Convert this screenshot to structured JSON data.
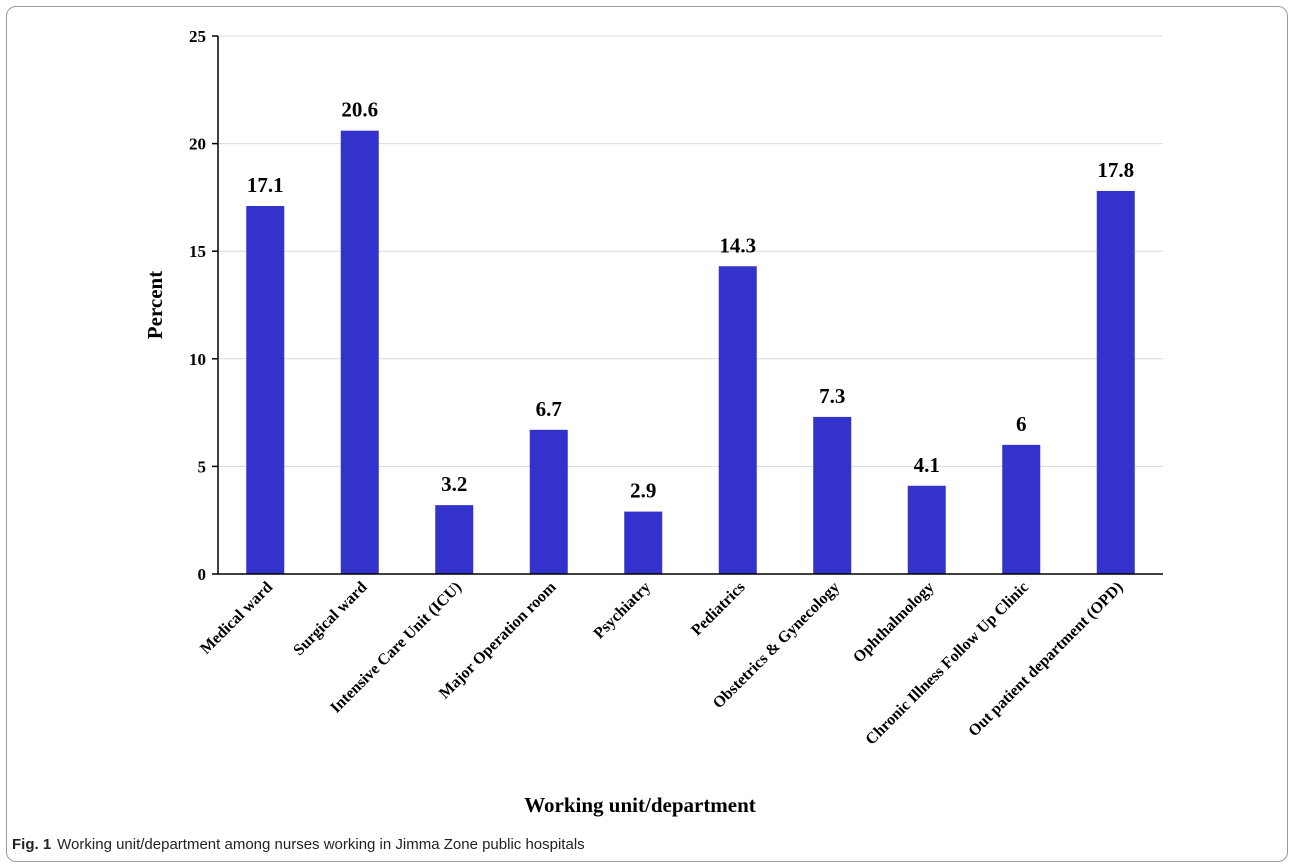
{
  "chart_data": {
    "type": "bar",
    "categories": [
      "Medical ward",
      "Surgical ward",
      "Intensive Care Unit (ICU)",
      "Major Operation room",
      "Psychiatry",
      "Pediatrics",
      "Obstetrics & Gynecology",
      "Ophthalmology",
      "Chronic Illness Follow Up Clinic",
      "Out patient department (OPD)"
    ],
    "values": [
      17.1,
      20.6,
      3.2,
      6.7,
      2.9,
      14.3,
      7.3,
      4.1,
      6,
      17.8
    ],
    "data_labels": [
      "17.1",
      "20.6",
      "3.2",
      "6.7",
      "2.9",
      "14.3",
      "7.3",
      "4.1",
      "6",
      "17.8"
    ],
    "xlabel": "Working unit/department",
    "ylabel": "Percent",
    "ylim": [
      0,
      25
    ],
    "yticks": [
      0,
      5,
      10,
      15,
      20,
      25
    ],
    "grid": true,
    "bar_color": "#3333CC"
  },
  "caption": {
    "label": "Fig. 1",
    "text": "Working unit/department among nurses working in Jimma Zone public hospitals"
  }
}
